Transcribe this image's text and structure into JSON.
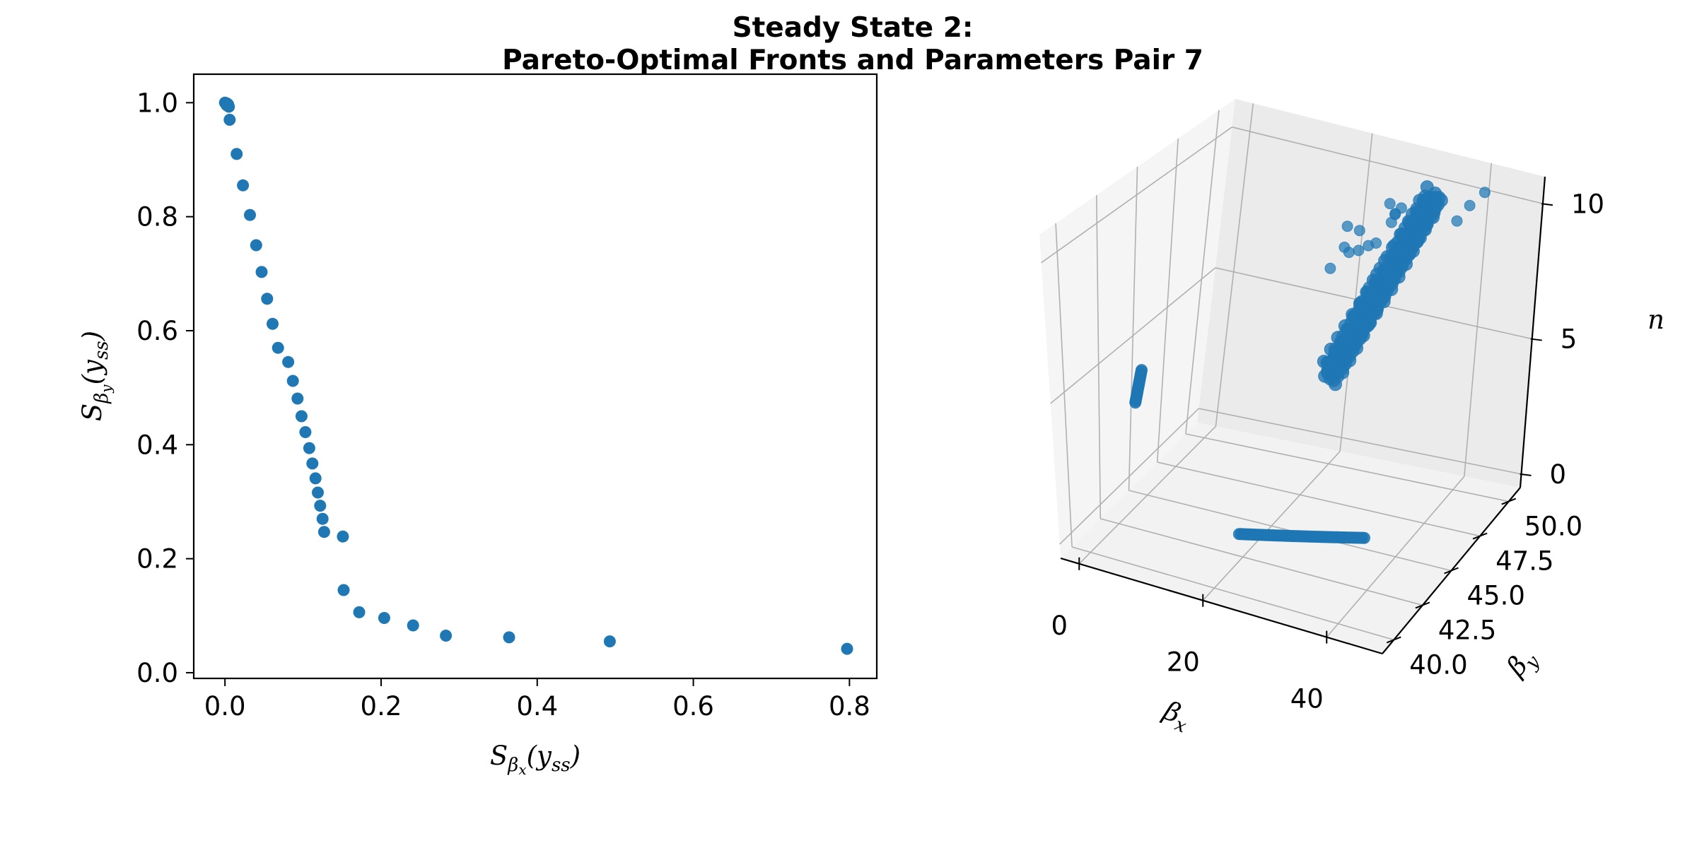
{
  "figure": {
    "title_line1": "Steady State 2:",
    "title_line2": "Pareto-Optimal Fronts and Parameters Pair 7"
  },
  "chart_data": [
    {
      "type": "scatter",
      "xlabel": {
        "main": "S",
        "sub": "β",
        "subsub": "x",
        "arg": "(y",
        "argsub": "ss",
        "close": ")"
      },
      "ylabel": {
        "main": "S",
        "sub": "β",
        "subsub": "y",
        "arg": "(y",
        "argsub": "ss",
        "close": ")"
      },
      "xlim": [
        -0.04,
        0.835
      ],
      "ylim": [
        -0.01,
        1.05
      ],
      "xticks": [
        0.0,
        0.2,
        0.4,
        0.6,
        0.8
      ],
      "xtick_labels": [
        "0.0",
        "0.2",
        "0.4",
        "0.6",
        "0.8"
      ],
      "yticks": [
        0.0,
        0.2,
        0.4,
        0.6,
        0.8,
        1.0
      ],
      "ytick_labels": [
        "0.0",
        "0.2",
        "0.4",
        "0.6",
        "0.8",
        "1.0"
      ],
      "color": "#1f77b4",
      "points": [
        [
          0.0,
          1.0
        ],
        [
          0.002,
          0.999
        ],
        [
          0.003,
          0.998
        ],
        [
          0.004,
          0.997
        ],
        [
          0.003,
          0.995
        ],
        [
          0.005,
          0.993
        ],
        [
          0.002,
          0.996
        ],
        [
          0.006,
          0.97
        ],
        [
          0.015,
          0.91
        ],
        [
          0.023,
          0.855
        ],
        [
          0.032,
          0.803
        ],
        [
          0.04,
          0.75
        ],
        [
          0.047,
          0.703
        ],
        [
          0.054,
          0.656
        ],
        [
          0.061,
          0.612
        ],
        [
          0.068,
          0.57
        ],
        [
          0.081,
          0.545
        ],
        [
          0.087,
          0.512
        ],
        [
          0.093,
          0.481
        ],
        [
          0.098,
          0.45
        ],
        [
          0.103,
          0.422
        ],
        [
          0.108,
          0.394
        ],
        [
          0.112,
          0.367
        ],
        [
          0.116,
          0.341
        ],
        [
          0.119,
          0.316
        ],
        [
          0.122,
          0.293
        ],
        [
          0.125,
          0.27
        ],
        [
          0.127,
          0.247
        ],
        [
          0.151,
          0.239
        ],
        [
          0.152,
          0.145
        ],
        [
          0.172,
          0.106
        ],
        [
          0.204,
          0.096
        ],
        [
          0.241,
          0.083
        ],
        [
          0.283,
          0.065
        ],
        [
          0.364,
          0.062
        ],
        [
          0.493,
          0.055
        ],
        [
          0.797,
          0.042
        ]
      ]
    },
    {
      "type": "scatter3d",
      "xlabel": {
        "main": "β",
        "sub": "x"
      },
      "ylabel": {
        "main": "β",
        "sub": "y"
      },
      "zlabel": "n",
      "xlim": [
        -3,
        49
      ],
      "ylim": [
        39,
        51
      ],
      "zlim": [
        -0.5,
        11
      ],
      "xticks": [
        0,
        20,
        40
      ],
      "xtick_labels": [
        "0",
        "20",
        "40"
      ],
      "yticks": [
        40.0,
        42.5,
        45.0,
        47.5,
        50.0
      ],
      "ytick_labels": [
        "40.0",
        "42.5",
        "45.0",
        "47.5",
        "50.0"
      ],
      "zticks": [
        0,
        5,
        10
      ],
      "ztick_labels": [
        "0",
        "5",
        "10"
      ],
      "color": "#1f77b4",
      "pane_color": "#f2f2f2",
      "grid_color": "#b0b0b0",
      "clusters": [
        {
          "kind": "line",
          "from": [
            -3.5,
            45.6,
            2.35
          ],
          "to": [
            -3.5,
            46.0,
            3.35
          ],
          "count": 22
        },
        {
          "kind": "line",
          "from": [
            18.4,
            43.0,
            0.0
          ],
          "to": [
            35.2,
            44.8,
            0.0
          ],
          "count": 70
        },
        {
          "kind": "band",
          "from": [
            24.0,
            47.0,
            4.2
          ],
          "to": [
            33.0,
            50.0,
            9.9
          ],
          "count": 160
        },
        {
          "kind": "points",
          "points": [
            [
              20.5,
              49.5,
              8.3
            ],
            [
              21.3,
              49.0,
              7.8
            ],
            [
              20.3,
              48.5,
              7.2
            ],
            [
              22.3,
              49.6,
              8.2
            ],
            [
              23.2,
              49.2,
              7.7
            ],
            [
              24.5,
              49.3,
              7.9
            ],
            [
              25.5,
              49.4,
              8.0
            ],
            [
              26.0,
              50.0,
              9.2
            ],
            [
              27.4,
              49.8,
              9.0
            ],
            [
              29.7,
              48.6,
              9.6
            ],
            [
              36.5,
              50.3,
              9.0
            ],
            [
              37.8,
              50.6,
              9.5
            ],
            [
              39.7,
              50.8,
              10.0
            ],
            [
              21.5,
              49.3,
              7.5
            ],
            [
              26.7,
              49.9,
              8.6
            ],
            [
              28.5,
              49.7,
              9.3
            ]
          ]
        }
      ]
    }
  ]
}
